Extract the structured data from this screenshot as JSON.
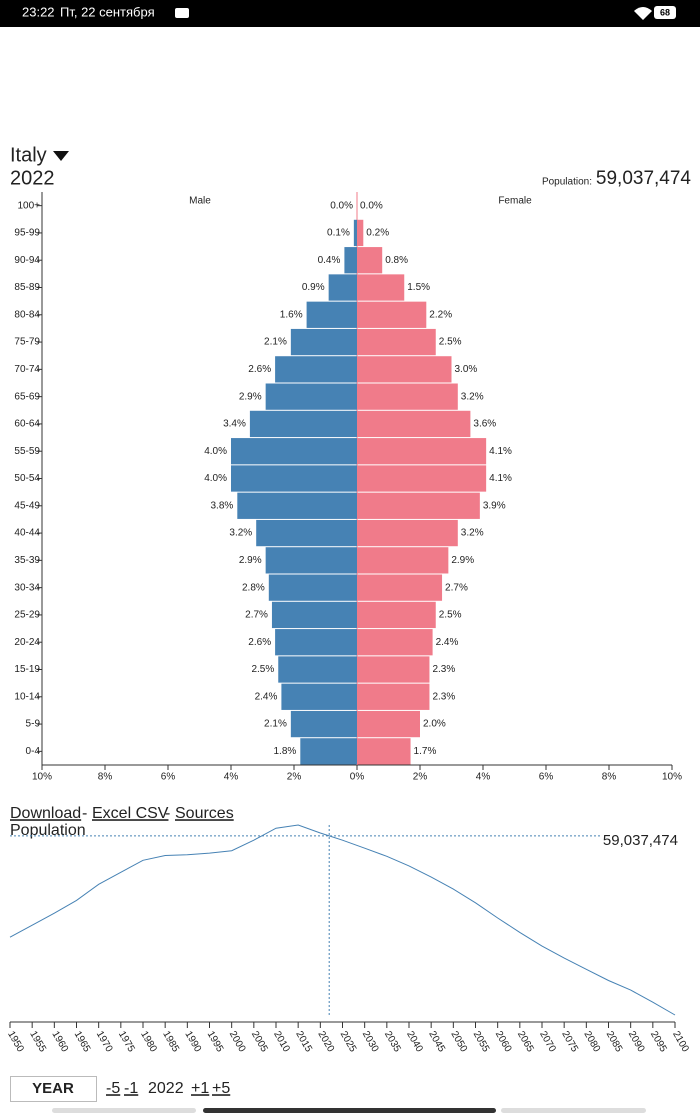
{
  "status_bar": {
    "time": "23:22",
    "date": "Пт, 22 сентября",
    "battery": "68"
  },
  "header": {
    "country": "Italy",
    "year": "2022",
    "population_label": "Population:",
    "population_value": "59,037,474"
  },
  "links": {
    "download": "Download",
    "sep1": "-",
    "excel": "Excel CSV",
    "sep2": "-",
    "sources": "Sources"
  },
  "footer": {
    "year_button": "YEAR",
    "minus5": "-5",
    "minus1": "-1",
    "current": "2022",
    "plus1": "+1",
    "plus5": "+5"
  },
  "chart_data": [
    {
      "type": "pyramid",
      "categories": [
        "100+",
        "95-99",
        "90-94",
        "85-89",
        "80-84",
        "75-79",
        "70-74",
        "65-69",
        "60-64",
        "55-59",
        "50-54",
        "45-49",
        "40-44",
        "35-39",
        "30-34",
        "25-29",
        "20-24",
        "15-19",
        "10-14",
        "5-9",
        "0-4"
      ],
      "series": [
        {
          "name": "Male",
          "color": "#4682b4",
          "values": [
            0.0,
            0.1,
            0.4,
            0.9,
            1.6,
            2.1,
            2.6,
            2.9,
            3.4,
            4.0,
            4.0,
            3.8,
            3.2,
            2.9,
            2.8,
            2.7,
            2.6,
            2.5,
            2.4,
            2.1,
            1.8
          ],
          "value_labels": [
            "0.0%",
            "0.1%",
            "0.4%",
            "0.9%",
            "1.6%",
            "2.1%",
            "2.6%",
            "2.9%",
            "3.4%",
            "4.0%",
            "4.0%",
            "3.8%",
            "3.2%",
            "2.9%",
            "2.8%",
            "2.7%",
            "2.6%",
            "2.5%",
            "2.4%",
            "2.1%",
            "1.8%"
          ]
        },
        {
          "name": "Female",
          "color": "#f07b8a",
          "values": [
            0.0,
            0.2,
            0.8,
            1.5,
            2.2,
            2.5,
            3.0,
            3.2,
            3.6,
            4.1,
            4.1,
            3.9,
            3.2,
            2.9,
            2.7,
            2.5,
            2.4,
            2.3,
            2.3,
            2.0,
            1.7
          ],
          "value_labels": [
            "0.0%",
            "0.2%",
            "0.8%",
            "1.5%",
            "2.2%",
            "2.5%",
            "3.0%",
            "3.2%",
            "3.6%",
            "4.1%",
            "4.1%",
            "3.9%",
            "3.2%",
            "2.9%",
            "2.7%",
            "2.5%",
            "2.4%",
            "2.3%",
            "2.3%",
            "2.0%",
            "1.7%"
          ]
        }
      ],
      "xlim": [
        0,
        10
      ],
      "xticks": [
        {
          "value": 0,
          "label": "0%"
        },
        {
          "value": 2,
          "label": "2%"
        },
        {
          "value": 4,
          "label": "4%"
        },
        {
          "value": 6,
          "label": "6%"
        },
        {
          "value": 8,
          "label": "8%"
        },
        {
          "value": 10,
          "label": "10%"
        }
      ]
    },
    {
      "type": "line",
      "title": "Population",
      "color": "#4682b4",
      "x": [
        1950,
        1955,
        1960,
        1965,
        1970,
        1975,
        1980,
        1985,
        1990,
        1995,
        2000,
        2005,
        2010,
        2015,
        2020,
        2022,
        2025,
        2030,
        2035,
        2040,
        2045,
        2050,
        2055,
        2060,
        2065,
        2070,
        2075,
        2080,
        2085,
        2090,
        2095,
        2100
      ],
      "values": [
        46400000,
        47900000,
        49400000,
        51000000,
        53000000,
        54500000,
        56000000,
        56600000,
        56700000,
        56900000,
        57200000,
        58500000,
        60000000,
        60400000,
        59400000,
        59037474,
        58500000,
        57500000,
        56500000,
        55300000,
        53900000,
        52400000,
        50700000,
        48800000,
        47000000,
        45300000,
        43800000,
        42400000,
        41000000,
        39800000,
        38300000,
        36700000
      ],
      "marker": {
        "x": 2022,
        "value": 59037474,
        "label": "59,037,474"
      },
      "xlim": [
        1950,
        2100
      ],
      "xticks": [
        1950,
        1955,
        1960,
        1965,
        1970,
        1975,
        1980,
        1985,
        1990,
        1995,
        2000,
        2005,
        2010,
        2015,
        2020,
        2025,
        2030,
        2035,
        2040,
        2045,
        2050,
        2055,
        2060,
        2065,
        2070,
        2075,
        2080,
        2085,
        2090,
        2095,
        2100
      ]
    }
  ]
}
